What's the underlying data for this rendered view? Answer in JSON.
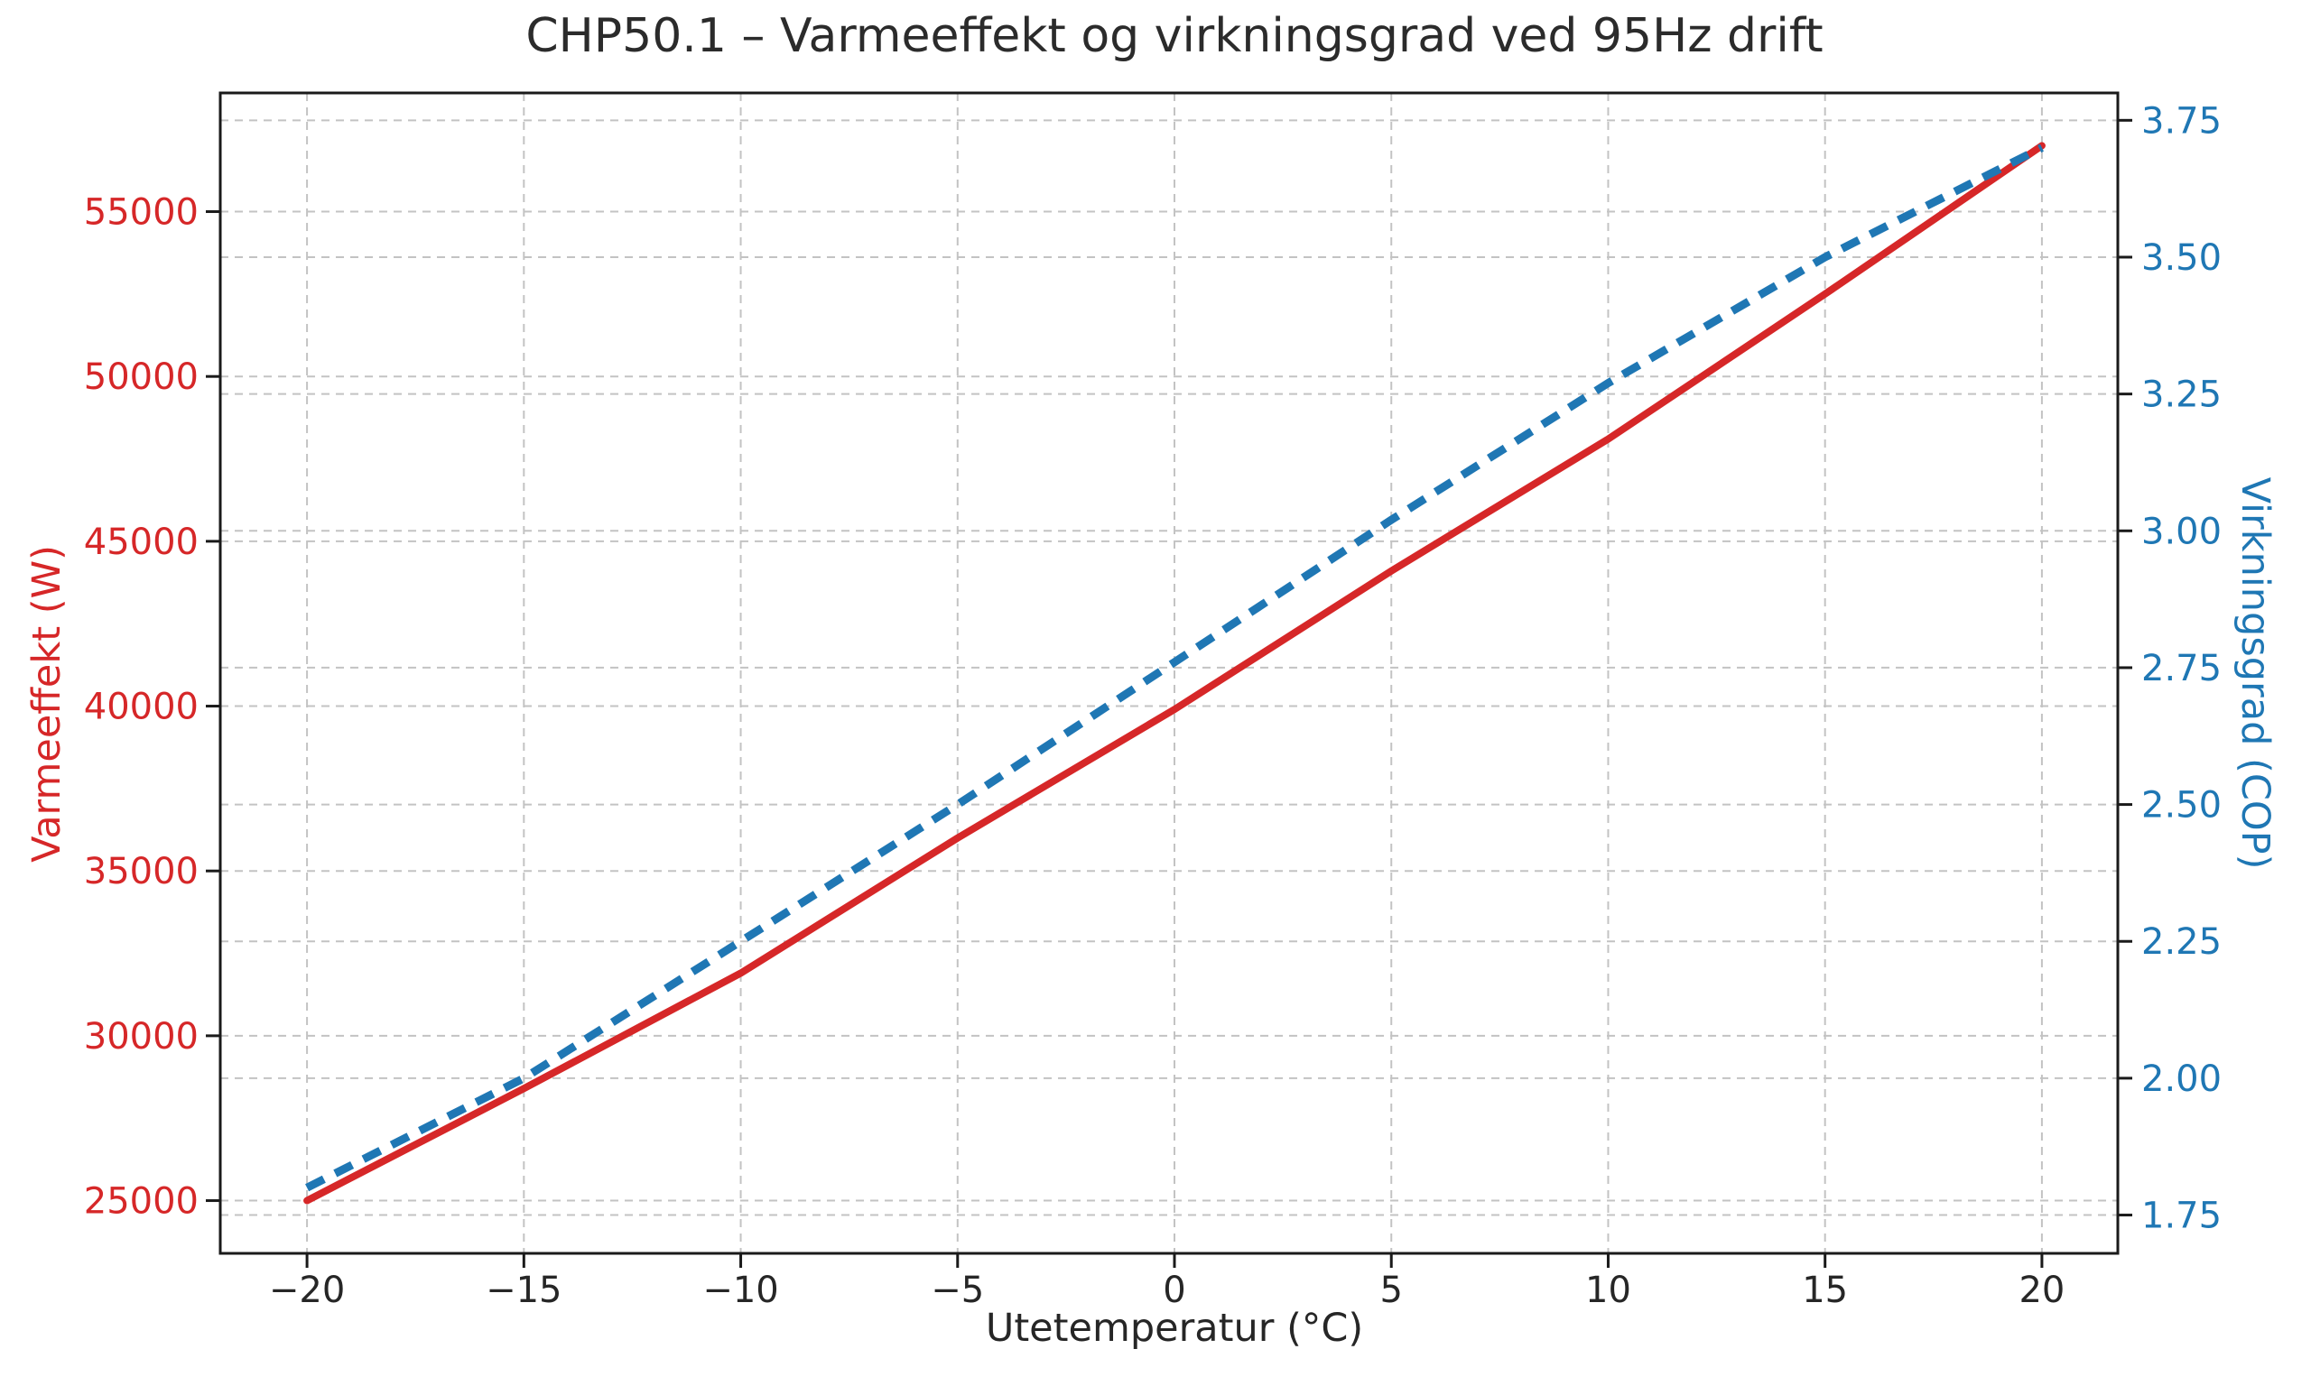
{
  "figure": {
    "background": "#ffffff",
    "title_color": "#2b2b2b",
    "text_color": "#262626",
    "spine_color": "#1a1a1a"
  },
  "chart_data": {
    "type": "line",
    "title": "CHP50.1 – Varmeeffekt og virkningsgrad ved 95Hz drift",
    "xlabel": "Utetemperatur (°C)",
    "ylabel_left": "Varmeeffekt (W)",
    "ylabel_right": "Virkningsgrad (COP)",
    "x": [
      -20,
      -15,
      -10,
      -5,
      0,
      5,
      10,
      15,
      20
    ],
    "series": [
      {
        "name": "Varmeeffekt (W)",
        "axis": "left",
        "color": "#d62728",
        "style": "solid",
        "values": [
          25000,
          28400,
          31900,
          36000,
          39900,
          44100,
          48100,
          52500,
          57000
        ]
      },
      {
        "name": "Virkningsgrad (COP)",
        "axis": "right",
        "color": "#1f77b4",
        "style": "dashed",
        "values": [
          1.8,
          2.0,
          2.25,
          2.5,
          2.76,
          3.02,
          3.27,
          3.5,
          3.7
        ]
      }
    ],
    "axes": {
      "x": {
        "ticks": [
          -20,
          -15,
          -10,
          -5,
          0,
          5,
          10,
          15,
          20
        ],
        "lim": [
          -22,
          21.75
        ],
        "color": "#262626"
      },
      "left": {
        "label": "Varmeeffekt (W)",
        "ticks": [
          25000,
          30000,
          35000,
          40000,
          45000,
          50000,
          55000
        ],
        "lim": [
          23400,
          58600
        ],
        "color": "#d62728"
      },
      "right": {
        "label": "Virkningsgrad (COP)",
        "ticks": [
          1.75,
          2.0,
          2.25,
          2.5,
          2.75,
          3.0,
          3.25,
          3.5,
          3.75
        ],
        "lim": [
          1.68,
          3.8
        ],
        "color": "#1f77b4"
      }
    },
    "grid": {
      "show": true,
      "color": "#c3c3c3",
      "style": "dashed"
    },
    "legend": "none"
  }
}
